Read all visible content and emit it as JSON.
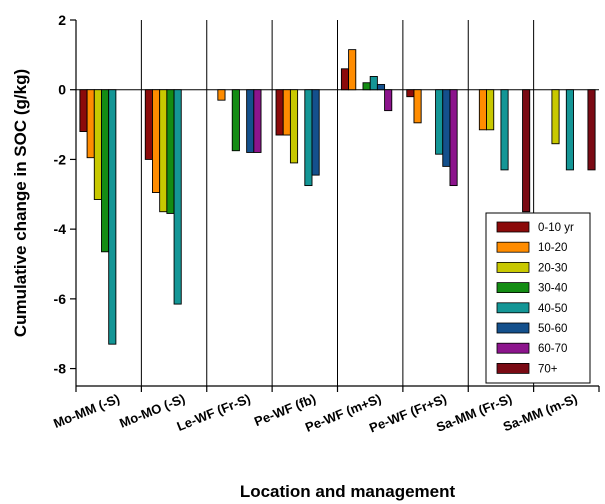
{
  "chart_data": {
    "type": "bar",
    "xlabel": "Location and management",
    "ylabel": "Cumulative change in SOC (g/kg)",
    "ylim": [
      -8.5,
      2
    ],
    "yticks": [
      2,
      0,
      -2,
      -4,
      -6,
      -8
    ],
    "grid": false,
    "legend_position": "bottom-right",
    "categories": [
      "Mo-MM (-S)",
      "Mo-MO (-S)",
      "Le-WF (Fr-S)",
      "Pe-WF (fb)",
      "Pe-WF (m+S)",
      "Pe-WF (Fr+S)",
      "Sa-MM (Fr-S)",
      "Sa-MM (m-S)"
    ],
    "series": [
      {
        "name": "0-10 yr",
        "color": "#8b0a0a",
        "values": [
          -1.2,
          -2.0,
          null,
          -1.3,
          0.6,
          -0.2,
          null,
          null
        ]
      },
      {
        "name": "10-20",
        "color": "#ff8c00",
        "values": [
          -1.95,
          -2.95,
          -0.3,
          -1.3,
          1.15,
          -0.95,
          -1.15,
          null
        ]
      },
      {
        "name": "20-30",
        "color": "#c8c800",
        "values": [
          -3.15,
          -3.5,
          null,
          -2.1,
          null,
          null,
          -1.15,
          -1.55
        ]
      },
      {
        "name": "30-40",
        "color": "#148c14",
        "values": [
          -4.65,
          -3.55,
          -1.75,
          null,
          0.2,
          null,
          null,
          null
        ]
      },
      {
        "name": "40-50",
        "color": "#149696",
        "values": [
          -7.3,
          -6.15,
          null,
          -2.75,
          0.38,
          -1.85,
          -2.3,
          -2.3
        ]
      },
      {
        "name": "50-60",
        "color": "#14508c",
        "values": [
          null,
          null,
          -1.8,
          -2.45,
          0.15,
          -2.2,
          null,
          null
        ]
      },
      {
        "name": "60-70",
        "color": "#8c148c",
        "values": [
          null,
          null,
          -1.8,
          null,
          -0.6,
          -2.75,
          null,
          null
        ]
      },
      {
        "name": "70+",
        "color": "#7a0a14",
        "values": [
          null,
          null,
          null,
          null,
          null,
          null,
          -3.5,
          -2.3
        ]
      }
    ]
  }
}
